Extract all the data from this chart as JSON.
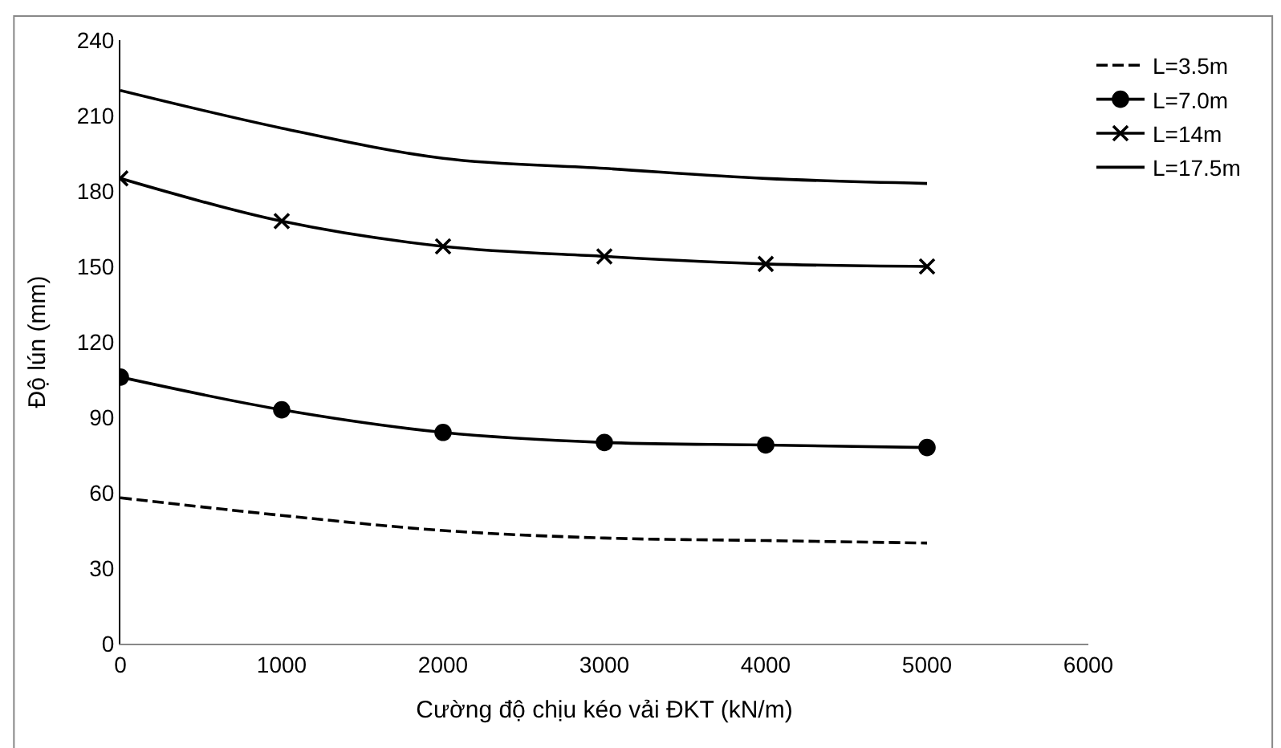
{
  "chart_data": {
    "type": "line",
    "xlabel": "Cường độ chịu kéo vải ĐKT (kN/m)",
    "ylabel": "Độ lún (mm)",
    "x": [
      0,
      1000,
      2000,
      3000,
      4000,
      5000
    ],
    "xlim": [
      0,
      6000
    ],
    "xticks": [
      0,
      1000,
      2000,
      3000,
      4000,
      5000,
      6000
    ],
    "ylim": [
      0,
      240
    ],
    "yticks": [
      0,
      30,
      60,
      90,
      120,
      150,
      180,
      210,
      240
    ],
    "legend": "top right",
    "series": [
      {
        "name": "L=3.5m",
        "color": "#000000",
        "values": [
          58,
          51,
          45,
          42,
          41,
          40
        ],
        "line_style": "dashed",
        "marker": "none"
      },
      {
        "name": "L=7.0m",
        "color": "#000000",
        "values": [
          106,
          93,
          84,
          80,
          79,
          78
        ],
        "line_style": "solid",
        "marker": "circle"
      },
      {
        "name": "L=14m",
        "color": "#000000",
        "values": [
          185,
          168,
          158,
          154,
          151,
          150
        ],
        "line_style": "solid",
        "marker": "cross"
      },
      {
        "name": "L=17.5m",
        "color": "#000000",
        "values": [
          220,
          205,
          193,
          189,
          185,
          183
        ],
        "line_style": "solid",
        "marker": "none"
      }
    ]
  }
}
